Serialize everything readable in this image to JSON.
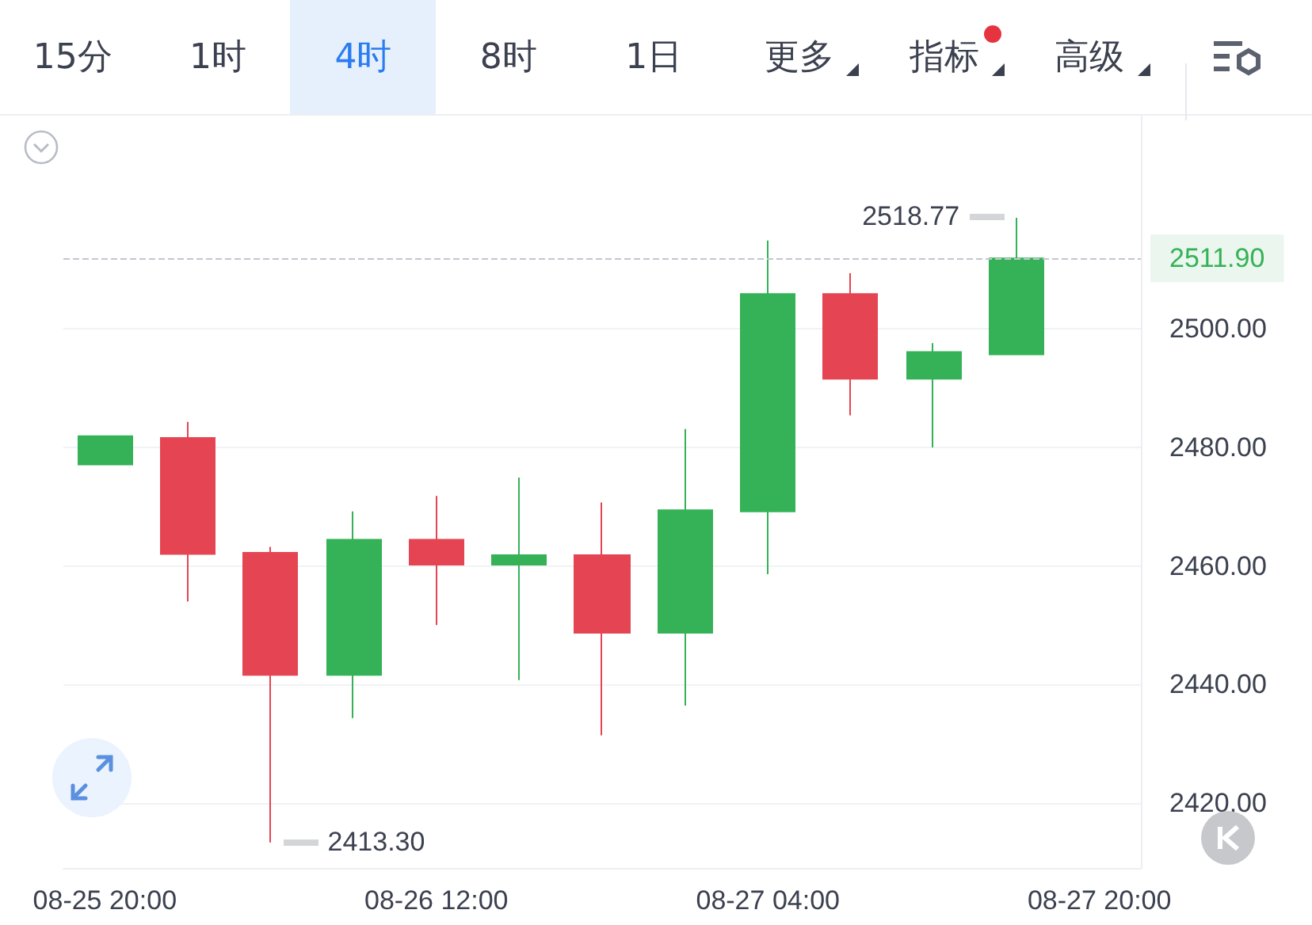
{
  "chart_data": {
    "type": "candlestick",
    "categories": [
      "08-25 20:00",
      null,
      null,
      null,
      "08-26 12:00",
      null,
      null,
      null,
      "08-27 04:00",
      null,
      null,
      null,
      "08-27 20:00"
    ],
    "ohlc": [
      [
        2477.1,
        2481.9,
        2477.1,
        2481.9
      ],
      [
        2481.6,
        2484.3,
        2454.0,
        2462.0
      ],
      [
        2462.2,
        2463.2,
        2413.3,
        2441.6
      ],
      [
        2441.6,
        2469.2,
        2434.3,
        2464.4
      ],
      [
        2464.4,
        2471.8,
        2450.0,
        2460.2
      ],
      [
        2460.2,
        2474.9,
        2440.7,
        2461.8
      ],
      [
        2461.8,
        2470.7,
        2431.4,
        2448.7
      ],
      [
        2448.7,
        2483.1,
        2436.4,
        2469.4
      ],
      [
        2469.2,
        2514.9,
        2458.6,
        2505.9
      ],
      [
        2505.9,
        2509.4,
        2485.4,
        2491.6
      ],
      [
        2491.6,
        2497.6,
        2480.0,
        2496.1
      ],
      [
        2495.7,
        2518.77,
        2495.7,
        2511.9
      ],
      null
    ],
    "colors": [
      "#35b257",
      "#e54552",
      "#e54552",
      "#35b257",
      "#e54552",
      "#35b257",
      "#e54552",
      "#35b257",
      "#35b257",
      "#e54552",
      "#35b257",
      "#35b257",
      null
    ],
    "ylim": [
      2409,
      2536
    ],
    "yticks": [
      {
        "value": 2420,
        "label": "2420.00"
      },
      {
        "value": 2440,
        "label": "2440.00"
      },
      {
        "value": 2460,
        "label": "2460.00"
      },
      {
        "value": 2480,
        "label": "2480.00"
      },
      {
        "value": 2500,
        "label": "2500.00"
      }
    ],
    "grid": "y",
    "ref_lines": [
      {
        "axis": "y",
        "value": 2511.9,
        "label": "2511.90",
        "color": "#c4c6cf",
        "line_style": "dashed"
      }
    ],
    "annotations": [
      "15分",
      "1时",
      "4时",
      "8时",
      "1日",
      "更多",
      "指标",
      "高级",
      "2518.77",
      "2413.30"
    ]
  }
}
